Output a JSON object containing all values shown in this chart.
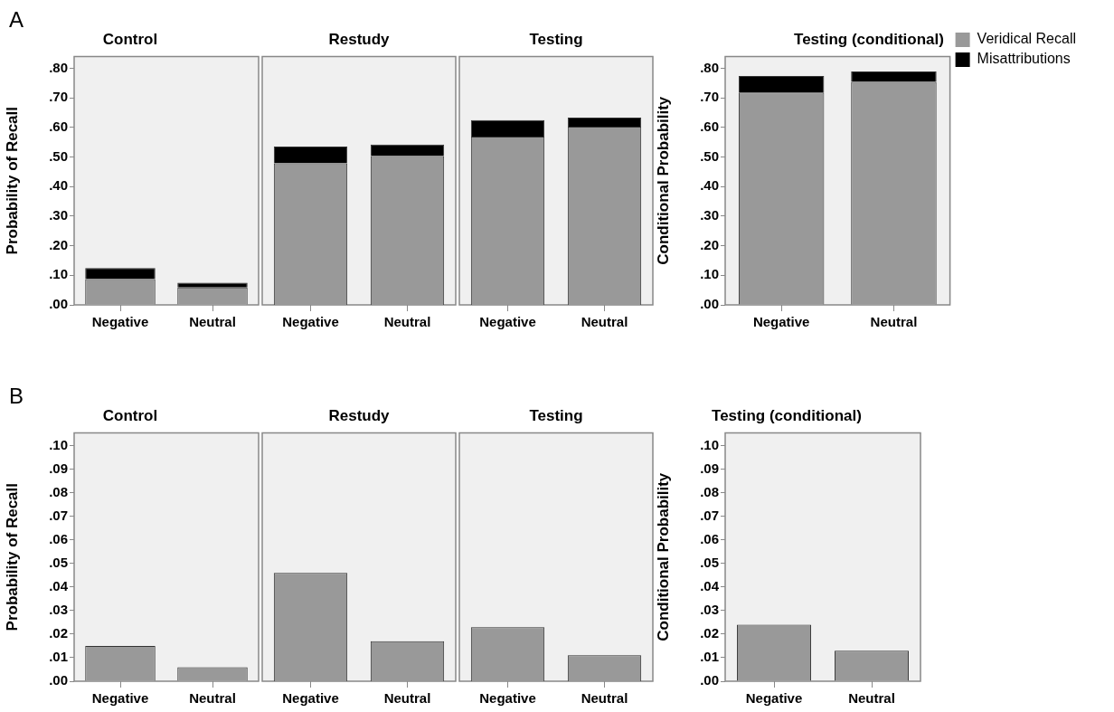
{
  "chart_data": [
    {
      "type": "bar",
      "title": "Control",
      "ylabel": "Probability of Recall",
      "annotations": [
        "A"
      ],
      "categories": [
        "Negative",
        "Neutral"
      ],
      "stacked": true,
      "ylim": [
        0,
        0.84
      ],
      "yticks": [
        {
          "value": 0,
          "label": ".00"
        },
        {
          "value": 0.1,
          "label": ".10"
        },
        {
          "value": 0.2,
          "label": ".20"
        },
        {
          "value": 0.3,
          "label": ".30"
        },
        {
          "value": 0.4,
          "label": ".40"
        },
        {
          "value": 0.5,
          "label": ".50"
        },
        {
          "value": 0.6,
          "label": ".60"
        },
        {
          "value": 0.7,
          "label": ".70"
        },
        {
          "value": 0.8,
          "label": ".80"
        }
      ],
      "legend": false,
      "series": [
        {
          "color": "#999999",
          "values": [
            0.087,
            0.059
          ]
        },
        {
          "color": "#000000",
          "values": [
            0.038,
            0.016
          ]
        }
      ]
    },
    {
      "type": "bar",
      "title": "Restudy",
      "categories": [
        "Negative",
        "Neutral"
      ],
      "stacked": true,
      "tick_labels": "x",
      "ylim": [
        0,
        0.84
      ],
      "legend": false,
      "series": [
        {
          "color": "#999999",
          "values": [
            0.479,
            0.503
          ]
        },
        {
          "color": "#000000",
          "values": [
            0.056,
            0.039
          ]
        }
      ]
    },
    {
      "type": "bar",
      "title": "Testing",
      "categories": [
        "Negative",
        "Neutral"
      ],
      "stacked": true,
      "tick_labels": "x",
      "ylim": [
        0,
        0.84
      ],
      "legend": false,
      "series": [
        {
          "color": "#999999",
          "values": [
            0.569,
            0.603
          ]
        },
        {
          "color": "#000000",
          "values": [
            0.056,
            0.03
          ]
        }
      ]
    },
    {
      "type": "bar",
      "title": "Testing (conditional)",
      "ylabel": "Conditional Probability",
      "categories": [
        "Negative",
        "Neutral"
      ],
      "stacked": true,
      "ylim": [
        0,
        0.84
      ],
      "yticks": [
        {
          "value": 0,
          "label": ".00"
        },
        {
          "value": 0.1,
          "label": ".10"
        },
        {
          "value": 0.2,
          "label": ".20"
        },
        {
          "value": 0.3,
          "label": ".30"
        },
        {
          "value": 0.4,
          "label": ".40"
        },
        {
          "value": 0.5,
          "label": ".50"
        },
        {
          "value": 0.6,
          "label": ".60"
        },
        {
          "value": 0.7,
          "label": ".70"
        },
        {
          "value": 0.8,
          "label": ".80"
        }
      ],
      "legend": "right",
      "series": [
        {
          "name": "Veridical Recall",
          "color": "#999999",
          "values": [
            0.718,
            0.754
          ]
        },
        {
          "name": "Misattributions",
          "color": "#000000",
          "values": [
            0.056,
            0.035
          ]
        }
      ]
    },
    {
      "type": "bar",
      "title": "Control",
      "ylabel": "Probability of Recall",
      "annotations": [
        "B"
      ],
      "categories": [
        "Negative",
        "Neutral"
      ],
      "ylim": [
        0,
        0.1055
      ],
      "yticks": [
        {
          "value": 0,
          "label": ".00"
        },
        {
          "value": 0.01,
          "label": ".01"
        },
        {
          "value": 0.02,
          "label": ".02"
        },
        {
          "value": 0.03,
          "label": ".03"
        },
        {
          "value": 0.04,
          "label": ".04"
        },
        {
          "value": 0.05,
          "label": ".05"
        },
        {
          "value": 0.06,
          "label": ".06"
        },
        {
          "value": 0.07,
          "label": ".07"
        },
        {
          "value": 0.08,
          "label": ".08"
        },
        {
          "value": 0.09,
          "label": ".09"
        },
        {
          "value": 0.1,
          "label": ".10"
        }
      ],
      "legend": false,
      "series": [
        {
          "color": "#999999",
          "values": [
            0.015,
            0.006
          ]
        }
      ]
    },
    {
      "type": "bar",
      "title": "Restudy",
      "categories": [
        "Negative",
        "Neutral"
      ],
      "tick_labels": "x",
      "ylim": [
        0,
        0.1055
      ],
      "legend": false,
      "series": [
        {
          "color": "#999999",
          "values": [
            0.046,
            0.017
          ]
        }
      ]
    },
    {
      "type": "bar",
      "title": "Testing",
      "categories": [
        "Negative",
        "Neutral"
      ],
      "tick_labels": "x",
      "ylim": [
        0,
        0.1055
      ],
      "legend": false,
      "series": [
        {
          "color": "#999999",
          "values": [
            0.023,
            0.011
          ]
        }
      ]
    },
    {
      "type": "bar",
      "title": "Testing (conditional)",
      "ylabel": "Conditional Probability",
      "categories": [
        "Negative",
        "Neutral"
      ],
      "ylim": [
        0,
        0.1055
      ],
      "yticks": [
        {
          "value": 0,
          "label": ".00"
        },
        {
          "value": 0.01,
          "label": ".01"
        },
        {
          "value": 0.02,
          "label": ".02"
        },
        {
          "value": 0.03,
          "label": ".03"
        },
        {
          "value": 0.04,
          "label": ".04"
        },
        {
          "value": 0.05,
          "label": ".05"
        },
        {
          "value": 0.06,
          "label": ".06"
        },
        {
          "value": 0.07,
          "label": ".07"
        },
        {
          "value": 0.08,
          "label": ".08"
        },
        {
          "value": 0.09,
          "label": ".09"
        },
        {
          "value": 0.1,
          "label": ".10"
        }
      ],
      "legend": false,
      "series": [
        {
          "color": "#999999",
          "values": [
            0.024,
            0.013
          ]
        }
      ]
    }
  ]
}
